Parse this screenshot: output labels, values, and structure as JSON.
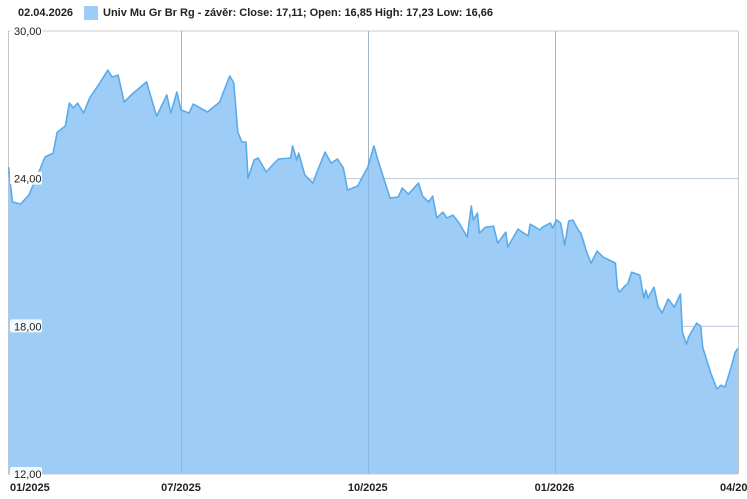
{
  "header": {
    "date": "02.04.2026",
    "legend": "Univ Mu Gr Br Rg - závěr: Close: 17,11; Open: 16,85 High: 17,23 Low: 16,66"
  },
  "colors": {
    "fill": "#9dcdf7",
    "line": "#5aabea",
    "grid": "#cccccc"
  },
  "chart_data": {
    "type": "area",
    "title": "",
    "xlabel": "",
    "ylabel": "",
    "ylim": [
      12,
      30
    ],
    "xlim": [
      "2025-04-07",
      "2026-04-02"
    ],
    "grid": true,
    "legend_placement": "top-left",
    "yticks": [
      "30,00",
      "24,00",
      "18,00",
      "12,00"
    ],
    "ytick_values": [
      30,
      24,
      18,
      12
    ],
    "xticks": [
      "01/2025",
      "07/2025",
      "10/2025",
      "01/2026",
      "04/20"
    ],
    "xtick_dates": [
      "2025-04-07",
      "2025-07-01",
      "2025-10-01",
      "2026-01-01",
      "2026-04-01"
    ],
    "series": [
      {
        "points": [
          [
            "2025-04-07",
            24.47
          ],
          [
            "2025-04-09",
            23.05
          ],
          [
            "2025-04-13",
            22.97
          ],
          [
            "2025-04-17",
            23.33
          ],
          [
            "2025-04-23",
            24.47
          ],
          [
            "2025-04-25",
            24.88
          ],
          [
            "2025-04-29",
            25.04
          ],
          [
            "2025-05-01",
            25.89
          ],
          [
            "2025-05-05",
            26.14
          ],
          [
            "2025-05-07",
            27.07
          ],
          [
            "2025-05-09",
            26.87
          ],
          [
            "2025-05-11",
            27.07
          ],
          [
            "2025-05-14",
            26.67
          ],
          [
            "2025-05-17",
            27.28
          ],
          [
            "2025-05-22",
            27.89
          ],
          [
            "2025-05-26",
            28.41
          ],
          [
            "2025-05-28",
            28.13
          ],
          [
            "2025-05-31",
            28.21
          ],
          [
            "2025-06-03",
            27.11
          ],
          [
            "2025-06-07",
            27.44
          ],
          [
            "2025-06-14",
            27.93
          ],
          [
            "2025-06-19",
            26.54
          ],
          [
            "2025-06-24",
            27.4
          ],
          [
            "2025-06-26",
            26.67
          ],
          [
            "2025-06-29",
            27.52
          ],
          [
            "2025-07-01",
            26.79
          ],
          [
            "2025-07-05",
            26.67
          ],
          [
            "2025-07-07",
            27.03
          ],
          [
            "2025-07-14",
            26.71
          ],
          [
            "2025-07-20",
            27.11
          ],
          [
            "2025-07-25",
            28.17
          ],
          [
            "2025-07-27",
            27.89
          ],
          [
            "2025-07-29",
            25.89
          ],
          [
            "2025-07-31",
            25.49
          ],
          [
            "2025-08-02",
            25.49
          ],
          [
            "2025-08-03",
            24.02
          ],
          [
            "2025-08-06",
            24.76
          ],
          [
            "2025-08-08",
            24.84
          ],
          [
            "2025-08-12",
            24.27
          ],
          [
            "2025-08-15",
            24.55
          ],
          [
            "2025-08-18",
            24.8
          ],
          [
            "2025-08-24",
            24.84
          ],
          [
            "2025-08-25",
            25.33
          ],
          [
            "2025-08-27",
            24.76
          ],
          [
            "2025-08-28",
            25.04
          ],
          [
            "2025-08-31",
            24.15
          ],
          [
            "2025-09-04",
            23.82
          ],
          [
            "2025-09-06",
            24.27
          ],
          [
            "2025-09-10",
            25.08
          ],
          [
            "2025-09-13",
            24.63
          ],
          [
            "2025-09-16",
            24.8
          ],
          [
            "2025-09-19",
            24.43
          ],
          [
            "2025-09-21",
            23.54
          ],
          [
            "2025-09-26",
            23.7
          ],
          [
            "2025-10-01",
            24.47
          ],
          [
            "2025-10-04",
            25.33
          ],
          [
            "2025-10-06",
            24.76
          ],
          [
            "2025-10-09",
            23.98
          ],
          [
            "2025-10-12",
            23.21
          ],
          [
            "2025-10-16",
            23.25
          ],
          [
            "2025-10-18",
            23.62
          ],
          [
            "2025-10-21",
            23.37
          ],
          [
            "2025-10-26",
            23.82
          ],
          [
            "2025-10-28",
            23.29
          ],
          [
            "2025-10-31",
            23.05
          ],
          [
            "2025-11-02",
            23.29
          ],
          [
            "2025-11-04",
            22.4
          ],
          [
            "2025-11-07",
            22.64
          ],
          [
            "2025-11-09",
            22.4
          ],
          [
            "2025-11-12",
            22.52
          ],
          [
            "2025-11-15",
            22.2
          ],
          [
            "2025-11-19",
            21.63
          ],
          [
            "2025-11-21",
            22.89
          ],
          [
            "2025-11-22",
            22.32
          ],
          [
            "2025-11-24",
            22.6
          ],
          [
            "2025-11-25",
            21.79
          ],
          [
            "2025-11-28",
            22.03
          ],
          [
            "2025-12-02",
            22.07
          ],
          [
            "2025-12-04",
            21.38
          ],
          [
            "2025-12-08",
            21.83
          ],
          [
            "2025-12-09",
            21.22
          ],
          [
            "2025-12-14",
            21.95
          ],
          [
            "2025-12-19",
            21.67
          ],
          [
            "2025-12-20",
            22.15
          ],
          [
            "2025-12-25",
            21.91
          ],
          [
            "2025-12-26",
            22.03
          ],
          [
            "2025-12-30",
            22.2
          ],
          [
            "2025-12-31",
            21.99
          ],
          [
            "2026-01-02",
            22.32
          ],
          [
            "2026-01-04",
            22.2
          ],
          [
            "2026-01-06",
            21.3
          ],
          [
            "2026-01-08",
            22.28
          ],
          [
            "2026-01-10",
            22.32
          ],
          [
            "2026-01-13",
            21.87
          ],
          [
            "2026-01-14",
            21.79
          ],
          [
            "2026-01-17",
            20.98
          ],
          [
            "2026-01-19",
            20.57
          ],
          [
            "2026-01-22",
            21.06
          ],
          [
            "2026-01-25",
            20.81
          ],
          [
            "2026-01-27",
            20.73
          ],
          [
            "2026-01-31",
            20.57
          ],
          [
            "2026-02-01",
            19.55
          ],
          [
            "2026-02-02",
            19.39
          ],
          [
            "2026-02-05",
            19.67
          ],
          [
            "2026-02-06",
            19.72
          ],
          [
            "2026-02-08",
            20.2
          ],
          [
            "2026-02-12",
            20.08
          ],
          [
            "2026-02-14",
            19.15
          ],
          [
            "2026-02-15",
            19.47
          ],
          [
            "2026-02-16",
            19.15
          ],
          [
            "2026-02-19",
            19.59
          ],
          [
            "2026-02-21",
            18.82
          ],
          [
            "2026-02-23",
            18.54
          ],
          [
            "2026-02-26",
            19.11
          ],
          [
            "2026-03-01",
            18.78
          ],
          [
            "2026-03-04",
            19.31
          ],
          [
            "2026-03-05",
            17.76
          ],
          [
            "2026-03-07",
            17.28
          ],
          [
            "2026-03-08",
            17.56
          ],
          [
            "2026-03-12",
            18.13
          ],
          [
            "2026-03-14",
            18.01
          ],
          [
            "2026-03-15",
            17.15
          ],
          [
            "2026-03-19",
            16.1
          ],
          [
            "2026-03-22",
            15.45
          ],
          [
            "2026-03-24",
            15.61
          ],
          [
            "2026-03-26",
            15.53
          ],
          [
            "2026-03-29",
            16.34
          ],
          [
            "2026-03-31",
            16.95
          ],
          [
            "2026-04-02",
            17.11
          ]
        ]
      }
    ]
  }
}
